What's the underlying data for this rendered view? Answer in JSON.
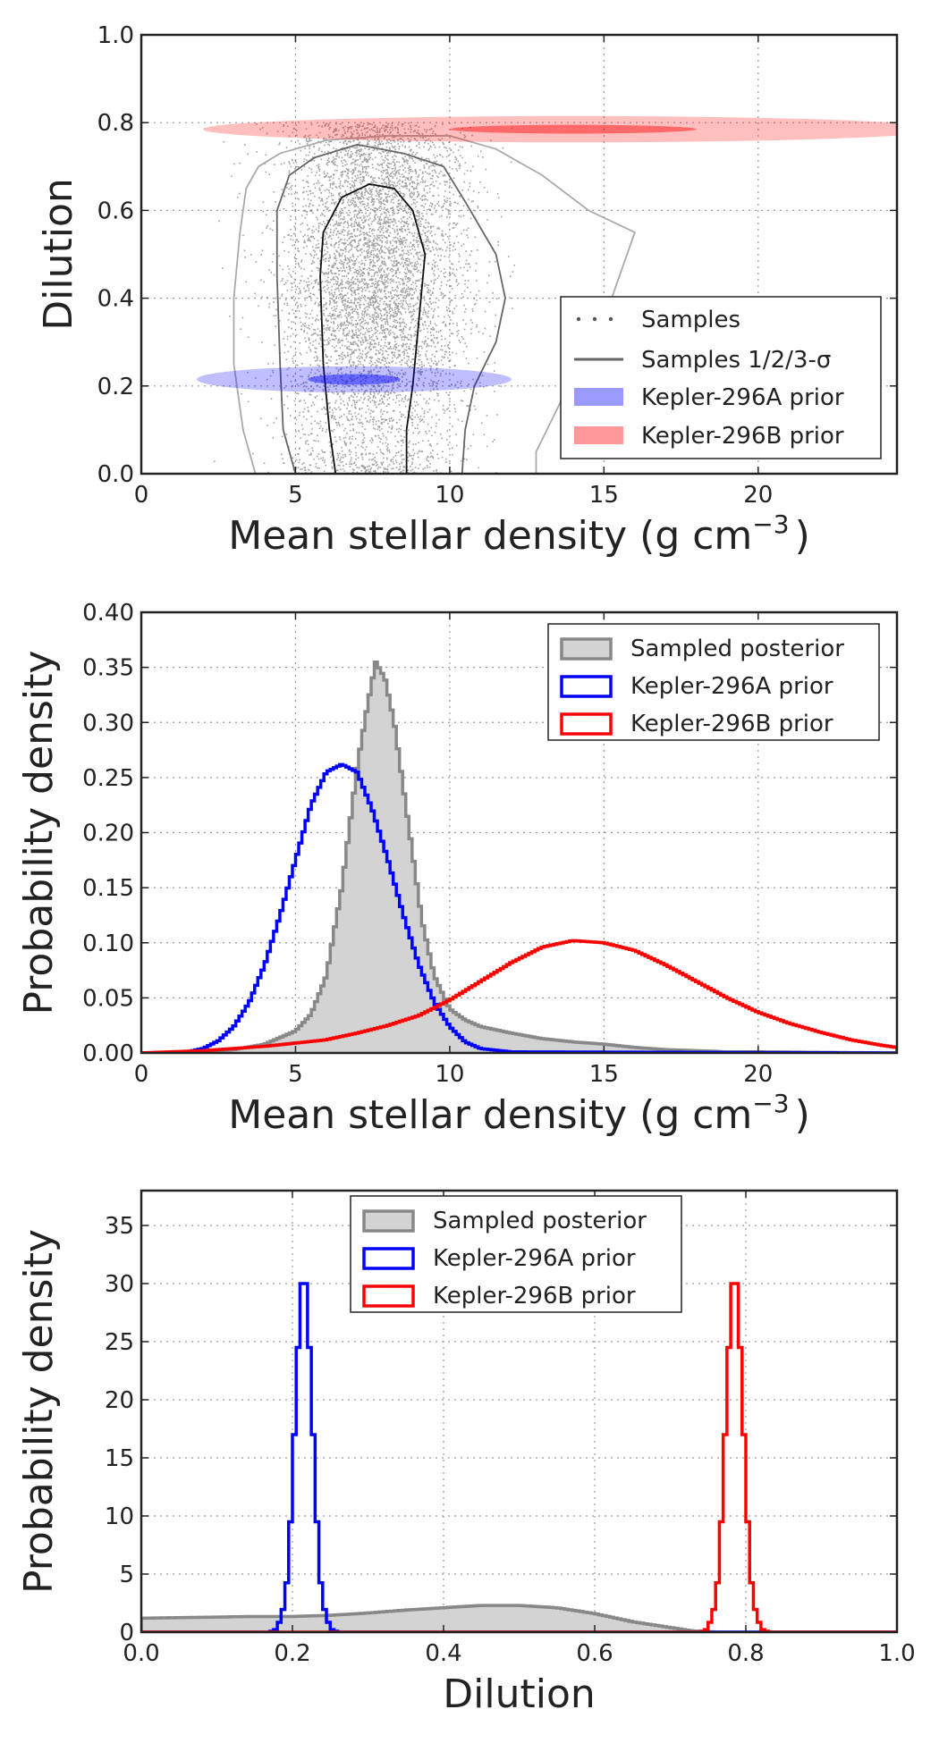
{
  "chart_data": [
    {
      "type": "scatter",
      "xlabel": "Mean stellar density (g cm",
      "xlabel_sup": "−3",
      "xlabel_end": ")",
      "ylabel": "Dilution",
      "xlim": [
        0,
        24.5
      ],
      "ylim": [
        0,
        1.0
      ],
      "xticks": [
        0,
        5,
        10,
        15,
        20
      ],
      "yticks": [
        0.0,
        0.2,
        0.4,
        0.6,
        0.8,
        1.0
      ],
      "ytick_labels": [
        "0.0",
        "0.2",
        "0.4",
        "0.6",
        "0.8",
        "1.0"
      ],
      "grid": true,
      "legend_position": "lower-right",
      "legend": [
        "Samples",
        "Samples 1/2/3-σ",
        "Kepler-296A prior",
        "Kepler-296B prior"
      ],
      "samples": {
        "color": "#555555",
        "center": [
          7.5,
          0.45
        ],
        "spread": [
          1.3,
          0.25
        ],
        "count": 6000
      },
      "contours": [
        {
          "level": 1,
          "color": "#111111",
          "points": [
            [
              6.3,
              0
            ],
            [
              6.1,
              0.1
            ],
            [
              5.9,
              0.25
            ],
            [
              5.8,
              0.45
            ],
            [
              5.9,
              0.55
            ],
            [
              6.5,
              0.63
            ],
            [
              7.4,
              0.66
            ],
            [
              8.2,
              0.65
            ],
            [
              8.8,
              0.6
            ],
            [
              9.2,
              0.5
            ],
            [
              9.0,
              0.35
            ],
            [
              8.8,
              0.2
            ],
            [
              8.6,
              0.1
            ],
            [
              8.6,
              0
            ]
          ]
        },
        {
          "level": 2,
          "color": "#666666",
          "points": [
            [
              5.0,
              0
            ],
            [
              4.6,
              0.1
            ],
            [
              4.5,
              0.25
            ],
            [
              4.4,
              0.45
            ],
            [
              4.4,
              0.6
            ],
            [
              4.8,
              0.68
            ],
            [
              5.6,
              0.72
            ],
            [
              7.0,
              0.75
            ],
            [
              8.5,
              0.73
            ],
            [
              9.8,
              0.7
            ],
            [
              10.5,
              0.62
            ],
            [
              11.5,
              0.5
            ],
            [
              11.8,
              0.4
            ],
            [
              11.5,
              0.3
            ],
            [
              10.8,
              0.2
            ],
            [
              10.5,
              0.1
            ],
            [
              10.4,
              0
            ]
          ]
        },
        {
          "level": 3,
          "color": "#aaaaaa",
          "points": [
            [
              3.7,
              0
            ],
            [
              3.3,
              0.1
            ],
            [
              3.0,
              0.25
            ],
            [
              3.0,
              0.4
            ],
            [
              3.2,
              0.55
            ],
            [
              3.4,
              0.65
            ],
            [
              3.8,
              0.7
            ],
            [
              4.5,
              0.73
            ],
            [
              6,
              0.76
            ],
            [
              8,
              0.77
            ],
            [
              10,
              0.77
            ],
            [
              11.5,
              0.74
            ],
            [
              13.0,
              0.68
            ],
            [
              14.5,
              0.6
            ],
            [
              16.0,
              0.55
            ],
            [
              15.5,
              0.45
            ],
            [
              15.0,
              0.35
            ],
            [
              14.5,
              0.3
            ],
            [
              13.5,
              0.15
            ],
            [
              12.8,
              0.05
            ],
            [
              12.8,
              0
            ]
          ]
        }
      ],
      "priors": [
        {
          "name": "Kepler-296A prior",
          "color": "#0000ff",
          "center": [
            6.9,
            0.215
          ],
          "outer": [
            5.1,
            0.03
          ],
          "inner": [
            1.5,
            0.012
          ]
        },
        {
          "name": "Kepler-296B prior",
          "color": "#ff0000",
          "center": [
            14.0,
            0.785
          ],
          "outer": [
            12.0,
            0.03
          ],
          "inner": [
            4.0,
            0.01
          ]
        }
      ]
    },
    {
      "type": "area",
      "xlabel": "Mean stellar density (g cm",
      "xlabel_sup": "−3",
      "xlabel_end": ")",
      "ylabel": "Probability density",
      "xlim": [
        0,
        24.5
      ],
      "ylim": [
        0,
        0.4
      ],
      "xticks": [
        0,
        5,
        10,
        15,
        20
      ],
      "yticks": [
        0.0,
        0.05,
        0.1,
        0.15,
        0.2,
        0.25,
        0.3,
        0.35,
        0.4
      ],
      "ytick_labels": [
        "0.00",
        "0.05",
        "0.10",
        "0.15",
        "0.20",
        "0.25",
        "0.30",
        "0.35",
        "0.40"
      ],
      "grid": true,
      "legend_position": "top-right",
      "series": [
        {
          "name": "Sampled posterior",
          "color": "#888888",
          "fill": "#d3d3d3",
          "x": [
            0,
            2,
            3,
            4,
            5,
            5.5,
            6,
            6.5,
            7,
            7.3,
            7.6,
            7.9,
            8.2,
            8.5,
            8.8,
            9.1,
            9.5,
            10,
            10.5,
            11,
            12,
            13,
            14,
            15,
            16,
            17,
            18,
            19,
            20,
            24.5
          ],
          "y": [
            0,
            0.001,
            0.003,
            0.008,
            0.02,
            0.035,
            0.07,
            0.15,
            0.26,
            0.31,
            0.355,
            0.34,
            0.3,
            0.24,
            0.18,
            0.12,
            0.07,
            0.04,
            0.03,
            0.024,
            0.018,
            0.013,
            0.01,
            0.008,
            0.005,
            0.003,
            0.002,
            0.001,
            0.001,
            0
          ]
        },
        {
          "name": "Kepler-296A prior",
          "color": "#0000ff",
          "x": [
            0,
            1.5,
            2,
            2.5,
            3,
            3.5,
            4,
            4.5,
            5,
            5.5,
            6,
            6.5,
            7,
            7.5,
            8,
            8.5,
            9,
            9.5,
            10,
            10.5,
            11,
            12,
            24.5
          ],
          "y": [
            0,
            0.001,
            0.004,
            0.011,
            0.024,
            0.046,
            0.08,
            0.125,
            0.175,
            0.225,
            0.255,
            0.262,
            0.255,
            0.22,
            0.175,
            0.125,
            0.08,
            0.046,
            0.024,
            0.01,
            0.004,
            0.001,
            0
          ]
        },
        {
          "name": "Kepler-296B prior",
          "color": "#ff0000",
          "x": [
            0,
            2,
            4,
            6,
            7,
            8,
            9,
            10,
            11,
            12,
            13,
            14,
            15,
            16,
            17,
            18,
            19,
            20,
            21,
            22,
            23,
            24,
            24.5
          ],
          "y": [
            0,
            0.002,
            0.006,
            0.012,
            0.018,
            0.025,
            0.034,
            0.048,
            0.065,
            0.082,
            0.096,
            0.102,
            0.1,
            0.093,
            0.08,
            0.065,
            0.05,
            0.037,
            0.027,
            0.019,
            0.012,
            0.007,
            0.005
          ]
        }
      ]
    },
    {
      "type": "area",
      "xlabel": "Dilution",
      "ylabel": "Probability density",
      "xlim": [
        0,
        1.0
      ],
      "ylim": [
        0,
        38
      ],
      "xticks": [
        0.0,
        0.2,
        0.4,
        0.6,
        0.8,
        1.0
      ],
      "xtick_labels": [
        "0.0",
        "0.2",
        "0.4",
        "0.6",
        "0.8",
        "1.0"
      ],
      "yticks": [
        0,
        5,
        10,
        15,
        20,
        25,
        30,
        35
      ],
      "ytick_labels": [
        "0",
        "5",
        "10",
        "15",
        "20",
        "25",
        "30",
        "35"
      ],
      "grid": true,
      "legend_position": "top-center",
      "series": [
        {
          "name": "Sampled posterior",
          "color": "#888888",
          "fill": "#d3d3d3",
          "x": [
            0,
            0.05,
            0.1,
            0.15,
            0.2,
            0.25,
            0.3,
            0.35,
            0.4,
            0.45,
            0.5,
            0.55,
            0.6,
            0.65,
            0.7,
            0.73,
            0.76,
            1.0
          ],
          "y": [
            1.2,
            1.25,
            1.3,
            1.35,
            1.35,
            1.45,
            1.65,
            1.9,
            2.1,
            2.3,
            2.3,
            2.1,
            1.6,
            0.9,
            0.4,
            0.1,
            0,
            0
          ]
        },
        {
          "name": "Kepler-296A prior",
          "color": "#0000ff",
          "x": [
            0,
            0.17,
            0.18,
            0.19,
            0.195,
            0.2,
            0.205,
            0.21,
            0.215,
            0.22,
            0.225,
            0.23,
            0.235,
            0.24,
            0.25,
            0.26,
            1.0
          ],
          "y": [
            0,
            0,
            0.3,
            2.5,
            6,
            13,
            21,
            28,
            32,
            28,
            21,
            13,
            6,
            2.5,
            0.3,
            0,
            0
          ]
        },
        {
          "name": "Kepler-296B prior",
          "color": "#ff0000",
          "x": [
            0,
            0.74,
            0.75,
            0.76,
            0.765,
            0.77,
            0.775,
            0.78,
            0.785,
            0.79,
            0.795,
            0.8,
            0.805,
            0.81,
            0.82,
            0.83,
            1.0
          ],
          "y": [
            0,
            0,
            0.3,
            2.5,
            6,
            13,
            21,
            28,
            32,
            28,
            21,
            13,
            6,
            2.5,
            0.3,
            0,
            0
          ]
        }
      ]
    }
  ]
}
